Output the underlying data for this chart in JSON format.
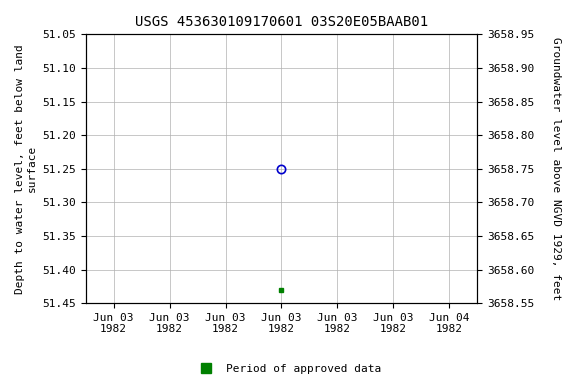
{
  "title": "USGS 453630109170601 03S20E05BAAB01",
  "ylabel_left": "Depth to water level, feet below land\nsurface",
  "ylabel_right": "Groundwater level above NGVD 1929, feet",
  "ylim_left_top": 51.05,
  "ylim_left_bottom": 51.45,
  "ylim_right_top": 3658.95,
  "ylim_right_bottom": 3658.55,
  "yticks_left": [
    51.05,
    51.1,
    51.15,
    51.2,
    51.25,
    51.3,
    51.35,
    51.4,
    51.45
  ],
  "yticks_right": [
    3658.95,
    3658.9,
    3658.85,
    3658.8,
    3658.75,
    3658.7,
    3658.65,
    3658.6,
    3658.55
  ],
  "ytick_labels_right": [
    "3658.95",
    "3658.90",
    "3658.85",
    "3658.80",
    "3658.75",
    "3658.70",
    "3658.65",
    "3658.60",
    "3658.55"
  ],
  "xtick_labels": [
    "Jun 03\n1982",
    "Jun 03\n1982",
    "Jun 03\n1982",
    "Jun 03\n1982",
    "Jun 03\n1982",
    "Jun 03\n1982",
    "Jun 04\n1982"
  ],
  "blue_point_x": 3.5,
  "blue_point_y": 51.25,
  "green_point_x": 3.5,
  "green_point_y": 51.43,
  "xmin": 0,
  "xmax": 7,
  "xtick_positions": [
    0.5,
    1.5,
    2.5,
    3.5,
    4.5,
    5.5,
    6.5
  ],
  "bg_color": "#ffffff",
  "grid_color": "#b0b0b0",
  "blue_color": "#0000cc",
  "green_color": "#008000",
  "legend_label": "Period of approved data",
  "title_fontsize": 10,
  "axis_label_fontsize": 8,
  "tick_fontsize": 8
}
